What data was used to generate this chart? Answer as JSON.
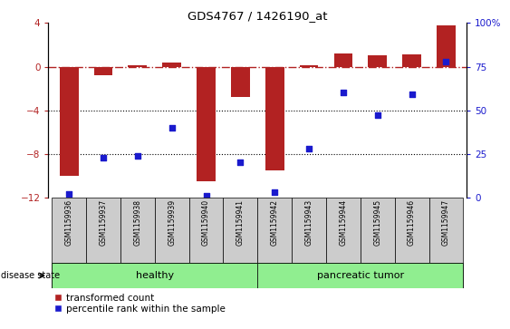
{
  "title": "GDS4767 / 1426190_at",
  "samples": [
    "GSM1159936",
    "GSM1159937",
    "GSM1159938",
    "GSM1159939",
    "GSM1159940",
    "GSM1159941",
    "GSM1159942",
    "GSM1159943",
    "GSM1159944",
    "GSM1159945",
    "GSM1159946",
    "GSM1159947"
  ],
  "transformed_count": [
    -10.0,
    -0.8,
    0.1,
    0.4,
    -10.5,
    -2.8,
    -9.5,
    0.1,
    1.2,
    1.0,
    1.1,
    3.8
  ],
  "percentile_rank": [
    2,
    23,
    24,
    40,
    1,
    20,
    3,
    28,
    60,
    47,
    59,
    78
  ],
  "bar_color": "#b22222",
  "dot_color": "#1a1acd",
  "left_ylim": [
    -12,
    4
  ],
  "right_ylim": [
    0,
    100
  ],
  "left_yticks": [
    -12,
    -8,
    -4,
    0,
    4
  ],
  "right_yticks": [
    0,
    25,
    50,
    75,
    100
  ],
  "dotted_lines": [
    -4,
    -8
  ],
  "healthy_color": "#90ee90",
  "tumor_color": "#90ee90",
  "tick_bg_color": "#cccccc",
  "bar_width": 0.55,
  "dot_size": 22,
  "n_healthy": 6,
  "n_tumor": 6
}
